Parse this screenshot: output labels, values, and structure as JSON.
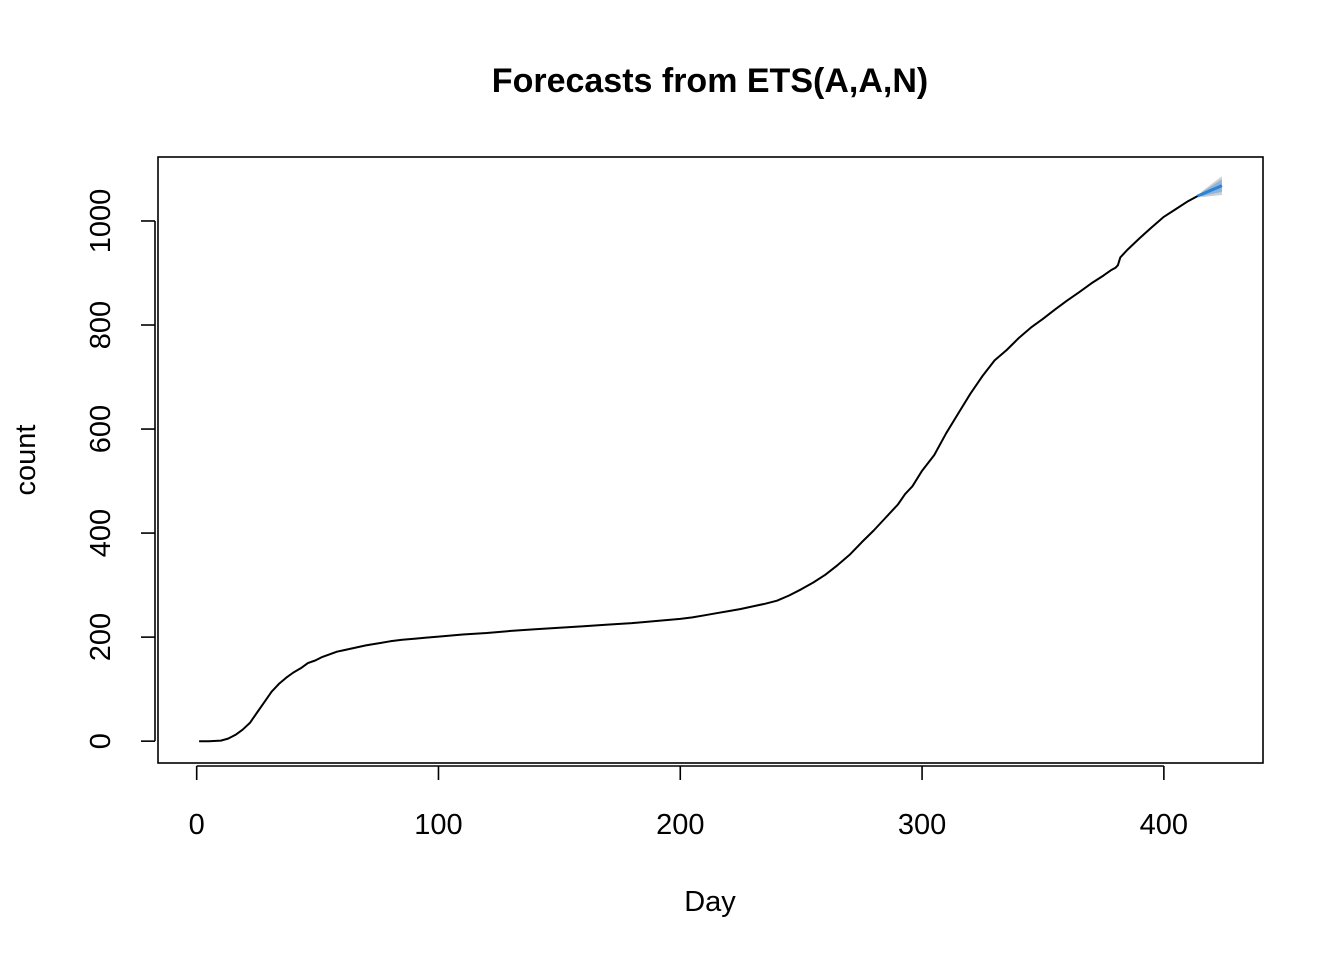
{
  "chart_data": {
    "type": "line",
    "title": "Forecasts from ETS(A,A,N)",
    "xlabel": "Day",
    "ylabel": "count",
    "xlim": [
      -16,
      441
    ],
    "ylim": [
      -42,
      1123
    ],
    "grid": false,
    "xticks": [
      0,
      100,
      200,
      300,
      400
    ],
    "yticks": [
      0,
      200,
      400,
      600,
      800,
      1000
    ],
    "colors": {
      "series": "#000000",
      "forecast_line": "#2b83d6",
      "forecast_band_80": "#7fb0de",
      "forecast_band_95": "#c6c6c6"
    },
    "series": [
      {
        "x": [
          1,
          5,
          10,
          13,
          16,
          19,
          22,
          25,
          28,
          31,
          34,
          37,
          40,
          43,
          46,
          49,
          52,
          55,
          58,
          61,
          65,
          70,
          75,
          80,
          85,
          90,
          95,
          100,
          110,
          120,
          130,
          140,
          150,
          160,
          170,
          180,
          190,
          200,
          205,
          210,
          215,
          220,
          225,
          230,
          235,
          240,
          245,
          250,
          255,
          260,
          265,
          270,
          275,
          280,
          285,
          290,
          293,
          296,
          300,
          305,
          310,
          315,
          320,
          325,
          330,
          335,
          340,
          345,
          350,
          355,
          360,
          365,
          370,
          375,
          378,
          380,
          381,
          382,
          385,
          390,
          395,
          400,
          405,
          410,
          414
        ],
        "values": [
          0,
          0,
          1,
          5,
          12,
          22,
          35,
          55,
          75,
          95,
          110,
          122,
          132,
          140,
          150,
          155,
          162,
          167,
          172,
          175,
          179,
          184,
          188,
          192,
          195,
          197,
          199,
          201,
          205,
          208,
          212,
          215,
          218,
          221,
          224,
          227,
          231,
          235,
          238,
          242,
          246,
          250,
          254,
          259,
          264,
          270,
          280,
          292,
          305,
          320,
          338,
          358,
          382,
          405,
          430,
          455,
          475,
          490,
          520,
          550,
          592,
          630,
          668,
          702,
          732,
          752,
          775,
          795,
          812,
          830,
          847,
          863,
          880,
          895,
          905,
          910,
          915,
          930,
          945,
          967,
          988,
          1008,
          1023,
          1038,
          1048
        ]
      }
    ],
    "forecast": {
      "x": [
        414,
        416,
        418,
        420,
        422,
        424
      ],
      "mean": [
        1048,
        1052,
        1056,
        1060,
        1064,
        1068
      ],
      "lo80": [
        1048,
        1048,
        1050,
        1052,
        1054,
        1056
      ],
      "hi80": [
        1048,
        1056,
        1062,
        1068,
        1074,
        1080
      ],
      "lo95": [
        1048,
        1046,
        1047,
        1048,
        1049,
        1050
      ],
      "hi95": [
        1048,
        1058,
        1065,
        1072,
        1079,
        1086
      ]
    }
  }
}
